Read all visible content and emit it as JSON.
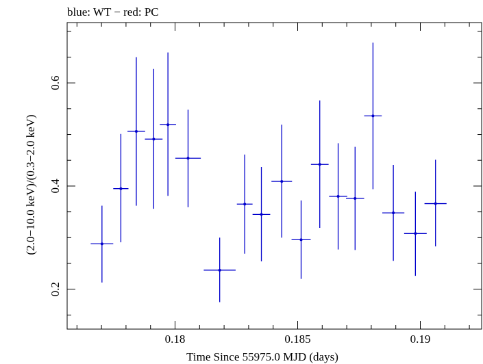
{
  "chart_data": {
    "type": "scatter",
    "title": "blue: WT − red: PC",
    "xlabel": "Time Since 55975.0 MJD (days)",
    "ylabel": "(2.0−10.0 keV)/(0.3−2.0 keV)",
    "xlim": [
      0.1756,
      0.1925
    ],
    "ylim": [
      0.1227,
      0.7169
    ],
    "xticks": [
      0.18,
      0.185,
      0.19
    ],
    "xtick_labels": [
      "0.18",
      "0.185",
      "0.19"
    ],
    "yticks": [
      0.2,
      0.4,
      0.6
    ],
    "ytick_labels": [
      "0.2",
      "0.4",
      "0.6"
    ],
    "grid": false,
    "colors": {
      "series": "#0000cc",
      "axes": "#000000"
    },
    "series": [
      {
        "color": "#0000cc",
        "points": [
          {
            "x": 0.17702,
            "xerr": 0.00046,
            "y": 0.288,
            "ylo": 0.213,
            "yhi": 0.362
          },
          {
            "x": 0.17779,
            "xerr": 0.00031,
            "y": 0.395,
            "ylo": 0.291,
            "yhi": 0.501
          },
          {
            "x": 0.17842,
            "xerr": 0.00036,
            "y": 0.506,
            "ylo": 0.362,
            "yhi": 0.65
          },
          {
            "x": 0.17913,
            "xerr": 0.00036,
            "y": 0.491,
            "ylo": 0.356,
            "yhi": 0.627
          },
          {
            "x": 0.17971,
            "xerr": 0.00033,
            "y": 0.519,
            "ylo": 0.381,
            "yhi": 0.659
          },
          {
            "x": 0.18053,
            "xerr": 0.00052,
            "y": 0.454,
            "ylo": 0.359,
            "yhi": 0.548
          },
          {
            "x": 0.18182,
            "xerr": 0.00065,
            "y": 0.237,
            "ylo": 0.175,
            "yhi": 0.3
          },
          {
            "x": 0.18284,
            "xerr": 0.00032,
            "y": 0.365,
            "ylo": 0.269,
            "yhi": 0.461
          },
          {
            "x": 0.18352,
            "xerr": 0.00036,
            "y": 0.345,
            "ylo": 0.254,
            "yhi": 0.437
          },
          {
            "x": 0.18435,
            "xerr": 0.00042,
            "y": 0.409,
            "ylo": 0.3,
            "yhi": 0.519
          },
          {
            "x": 0.18514,
            "xerr": 0.00039,
            "y": 0.296,
            "ylo": 0.22,
            "yhi": 0.372
          },
          {
            "x": 0.1859,
            "xerr": 0.00036,
            "y": 0.442,
            "ylo": 0.319,
            "yhi": 0.566
          },
          {
            "x": 0.18665,
            "xerr": 0.00037,
            "y": 0.38,
            "ylo": 0.277,
            "yhi": 0.483
          },
          {
            "x": 0.18734,
            "xerr": 0.00037,
            "y": 0.376,
            "ylo": 0.276,
            "yhi": 0.476
          },
          {
            "x": 0.18807,
            "xerr": 0.00036,
            "y": 0.536,
            "ylo": 0.394,
            "yhi": 0.678
          },
          {
            "x": 0.1889,
            "xerr": 0.00045,
            "y": 0.348,
            "ylo": 0.255,
            "yhi": 0.441
          },
          {
            "x": 0.1898,
            "xerr": 0.00046,
            "y": 0.308,
            "ylo": 0.226,
            "yhi": 0.389
          },
          {
            "x": 0.19062,
            "xerr": 0.00045,
            "y": 0.366,
            "ylo": 0.283,
            "yhi": 0.451
          }
        ]
      }
    ]
  }
}
